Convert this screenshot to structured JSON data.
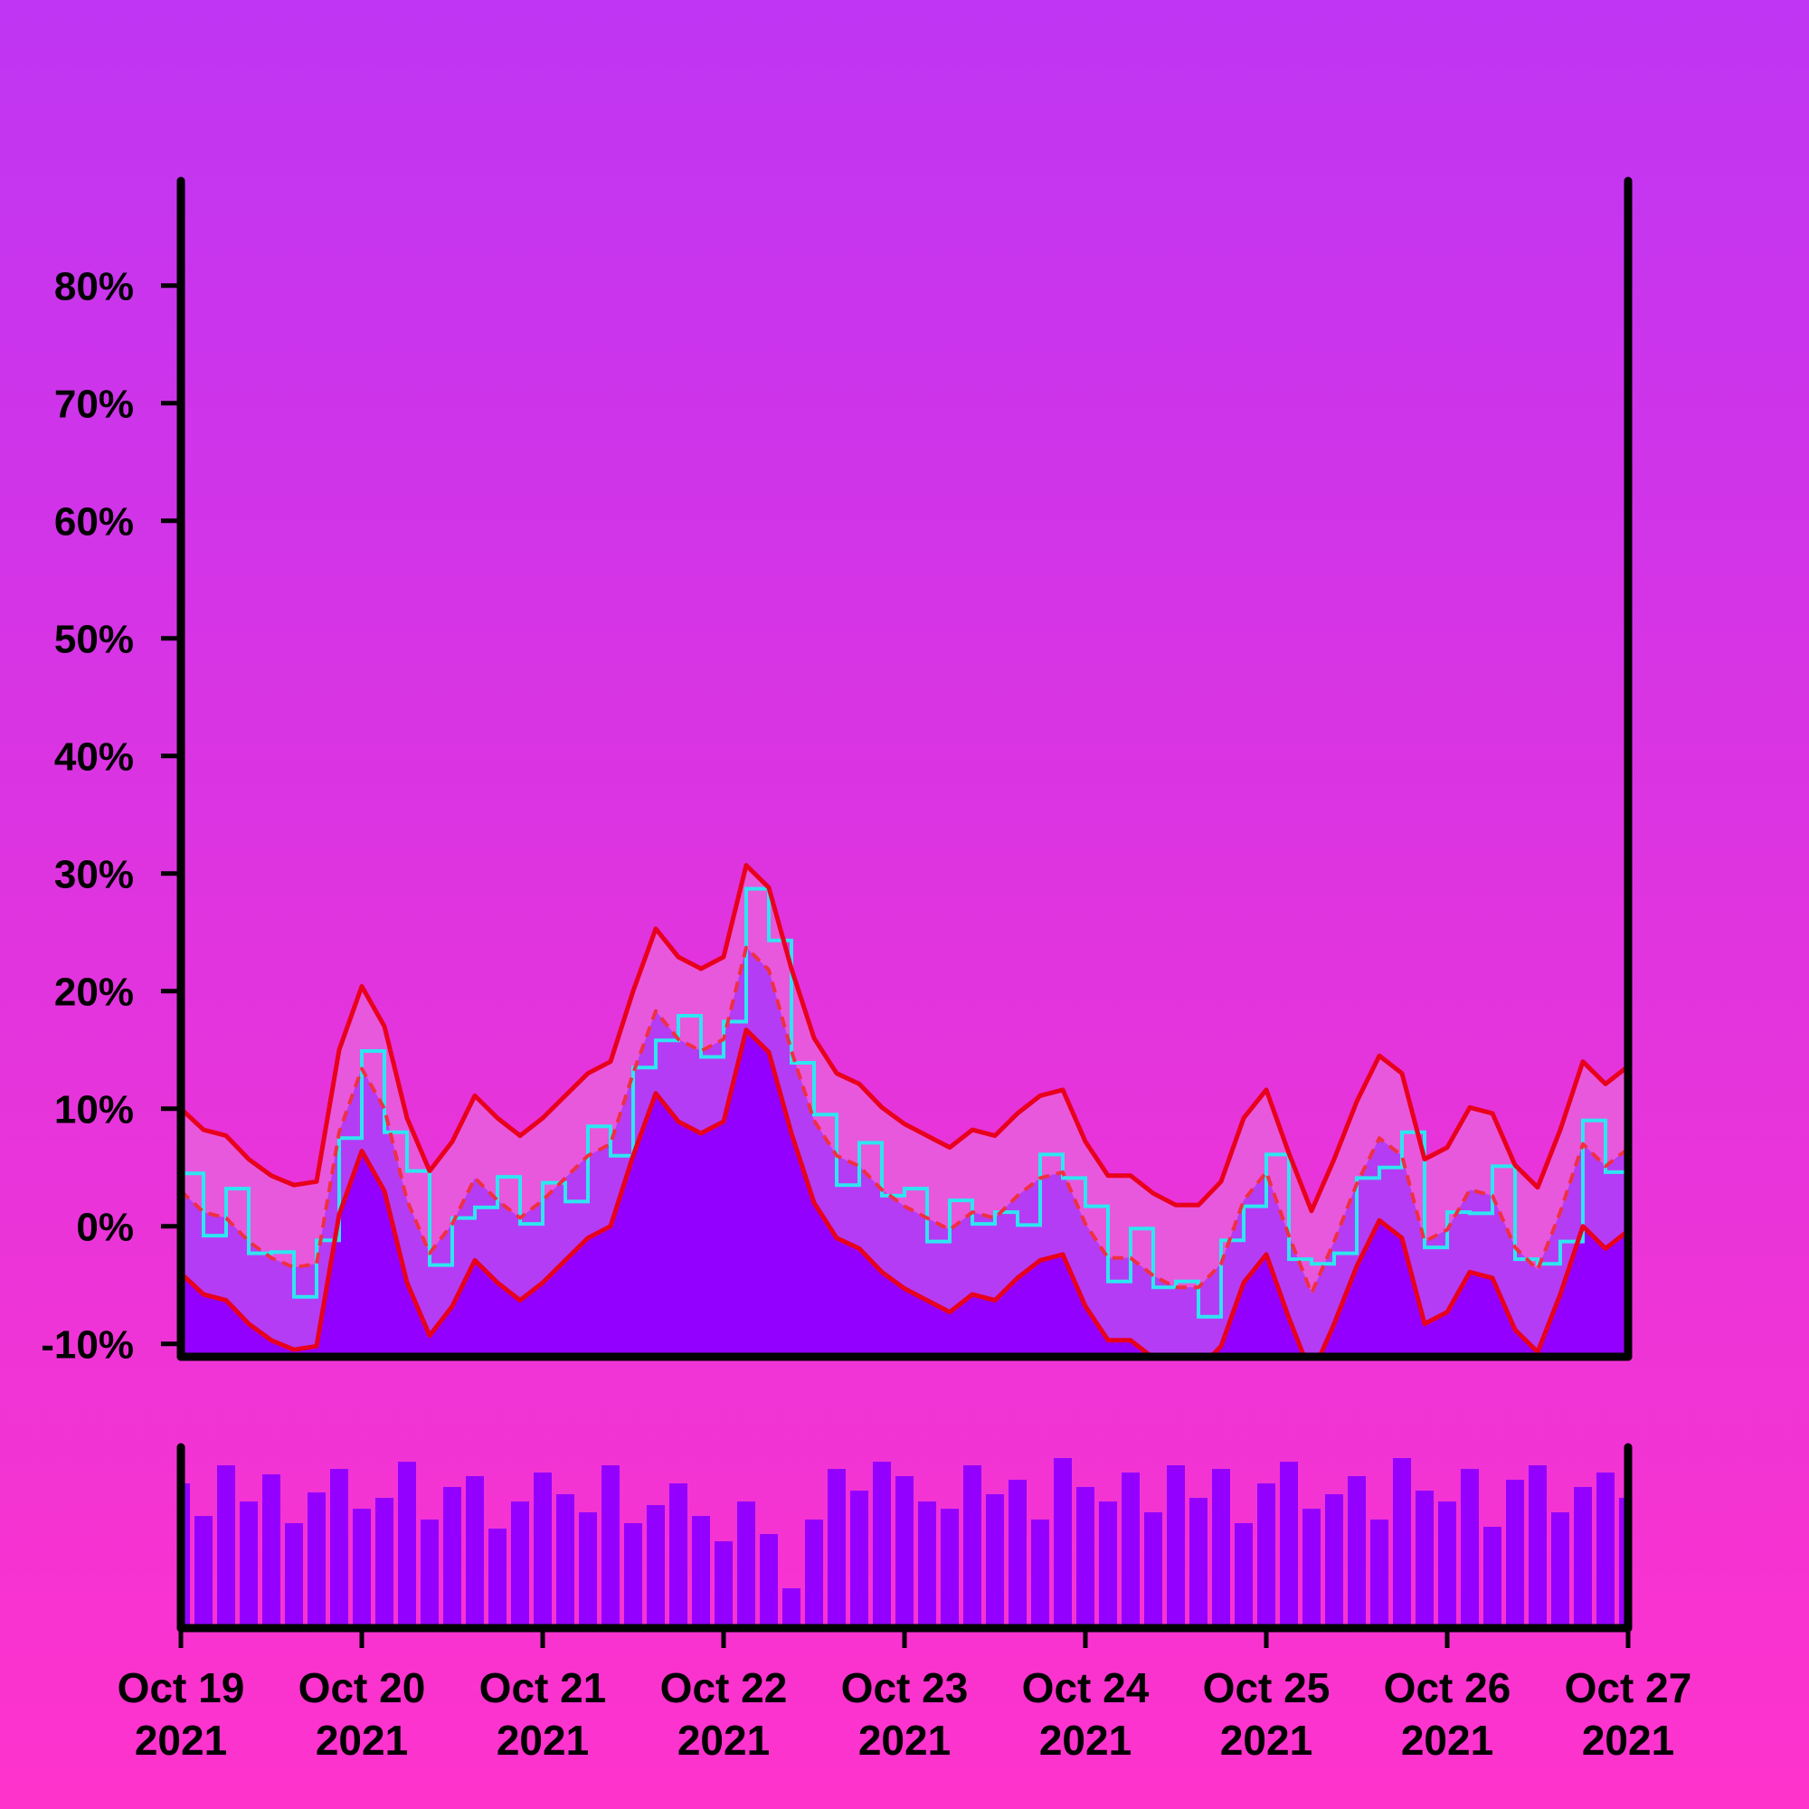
{
  "chart_data": {
    "type": "band",
    "categories": [
      "Oct 19 2021",
      null,
      null,
      null,
      null,
      null,
      null,
      null,
      "Oct 20 2021",
      null,
      null,
      null,
      null,
      null,
      null,
      null,
      "Oct 21 2021",
      null,
      null,
      null,
      null,
      null,
      null,
      null,
      "Oct 22 2021",
      null,
      null,
      null,
      null,
      null,
      null,
      null,
      "Oct 23 2021",
      null,
      null,
      null,
      null,
      null,
      null,
      null,
      "Oct 24 2021",
      null,
      null,
      null,
      null,
      null,
      null,
      null,
      "Oct 25 2021",
      null,
      null,
      null,
      null,
      null,
      null,
      null,
      "Oct 26 2021",
      null,
      null,
      null,
      null,
      null,
      null,
      null,
      "Oct 27 2021"
    ],
    "ylim": [
      -11.1,
      88.9
    ],
    "yticks": [
      {
        "value": -10,
        "label": "-10%"
      },
      {
        "value": 0,
        "label": "0%"
      },
      {
        "value": 10,
        "label": "10%"
      },
      {
        "value": 20,
        "label": "20%"
      },
      {
        "value": 30,
        "label": "30%"
      },
      {
        "value": 40,
        "label": "40%"
      },
      {
        "value": 50,
        "label": "50%"
      },
      {
        "value": 60,
        "label": "60%"
      },
      {
        "value": 70,
        "label": "70%"
      },
      {
        "value": 80,
        "label": "80%"
      }
    ],
    "price": {
      "color": "#2ee6f0",
      "values": [
        4.5,
        -0.8,
        3.2,
        -2.3,
        -2.2,
        -6,
        -1.2,
        7.5,
        14.9,
        8,
        4.7,
        -3.3,
        0.7,
        1.6,
        4.2,
        0.2,
        3.7,
        2.1,
        8.5,
        6,
        13.5,
        15.8,
        17.9,
        14.4,
        17.4,
        28.7,
        24.3,
        13.9,
        9.5,
        3.5,
        7.1,
        2.6,
        3.2,
        -1.3,
        2.2,
        0.2,
        1.2,
        0.1,
        6.1,
        4.1,
        1.7,
        -4.7,
        -0.2,
        -5.2,
        -4.7,
        -7.7,
        -1.2,
        1.7,
        6.1,
        -2.8,
        -3.2,
        -2.3,
        4.1,
        5,
        8,
        -1.8,
        1.2,
        1.1,
        5.1,
        -2.8,
        -3.2,
        -1.3,
        9,
        4.6,
        8.1
      ]
    },
    "upper": {
      "color": "#e8001c",
      "values": [
        10,
        8.2,
        7.7,
        5.7,
        4.3,
        3.5,
        3.8,
        15,
        20.4,
        17,
        9.2,
        4.7,
        7.2,
        11.1,
        9.2,
        7.7,
        9.2,
        11.1,
        13,
        14,
        20,
        25.3,
        22.9,
        21.9,
        22.9,
        30.7,
        28.8,
        21.9,
        16,
        13,
        12.1,
        10.1,
        8.7,
        7.7,
        6.7,
        8.2,
        7.7,
        9.6,
        11.1,
        11.6,
        7.2,
        4.3,
        4.3,
        2.8,
        1.8,
        1.8,
        3.8,
        9.2,
        11.6,
        6.2,
        1.3,
        5.7,
        10.6,
        14.5,
        13,
        5.7,
        6.7,
        10.1,
        9.6,
        5.2,
        3.3,
        8.2,
        14,
        12.1,
        13.6
      ]
    },
    "middle": {
      "color": "#f03040",
      "dashed": true,
      "values": [
        3,
        1.2,
        0.7,
        -1.3,
        -2.7,
        -3.5,
        -3.2,
        8,
        13.4,
        10,
        2.2,
        -2.3,
        0.2,
        4.1,
        2.2,
        0.7,
        2.2,
        4.1,
        6,
        7,
        13,
        18.3,
        15.9,
        14.9,
        15.9,
        23.7,
        21.8,
        14.9,
        9,
        6,
        5.1,
        3.1,
        1.7,
        0.7,
        -0.3,
        1.2,
        0.7,
        2.6,
        4.1,
        4.6,
        0.2,
        -2.7,
        -2.7,
        -4.2,
        -5.2,
        -5.2,
        -3.2,
        2.2,
        4.6,
        -0.8,
        -5.7,
        -1.3,
        3.6,
        7.5,
        6,
        -1.3,
        -0.3,
        3.1,
        2.6,
        -1.8,
        -3.7,
        1.2,
        7,
        5.1,
        6.6
      ]
    },
    "lower": {
      "color": "#e8001c",
      "values": [
        -4,
        -5.8,
        -6.3,
        -8.3,
        -9.7,
        -10.5,
        -10.2,
        1,
        6.4,
        3,
        -4.8,
        -9.3,
        -6.8,
        -2.9,
        -4.8,
        -6.3,
        -4.8,
        -2.9,
        -1,
        0,
        6,
        11.3,
        8.9,
        7.9,
        8.9,
        16.7,
        14.8,
        7.9,
        2,
        -1,
        -1.9,
        -3.9,
        -5.3,
        -6.3,
        -7.3,
        -5.8,
        -6.3,
        -4.4,
        -2.9,
        -2.4,
        -6.8,
        -9.7,
        -9.7,
        -11.2,
        -12.2,
        -12.2,
        -10.2,
        -4.8,
        -2.4,
        -7.8,
        -12.7,
        -8.3,
        -3.4,
        0.5,
        -1,
        -8.3,
        -7.3,
        -3.9,
        -4.4,
        -8.8,
        -10.7,
        -5.8,
        0,
        -1.9,
        -0.4
      ]
    },
    "band_colors": [
      "#e858dc",
      "#b53cf5",
      "#9400ff"
    ],
    "volume": {
      "color": "#9400ff",
      "ylim": [
        0,
        100
      ],
      "values": [
        80,
        62,
        90,
        70,
        85,
        58,
        75,
        88,
        66,
        72,
        92,
        60,
        78,
        84,
        55,
        70,
        86,
        74,
        64,
        90,
        58,
        68,
        80,
        62,
        48,
        70,
        52,
        22,
        60,
        88,
        76,
        92,
        84,
        70,
        66,
        90,
        74,
        82,
        60,
        94,
        78,
        70,
        86,
        64,
        90,
        72,
        88,
        58,
        80,
        92,
        66,
        74,
        84,
        60,
        94,
        76,
        70,
        88,
        56,
        82,
        90,
        64,
        78,
        86,
        72
      ]
    }
  }
}
